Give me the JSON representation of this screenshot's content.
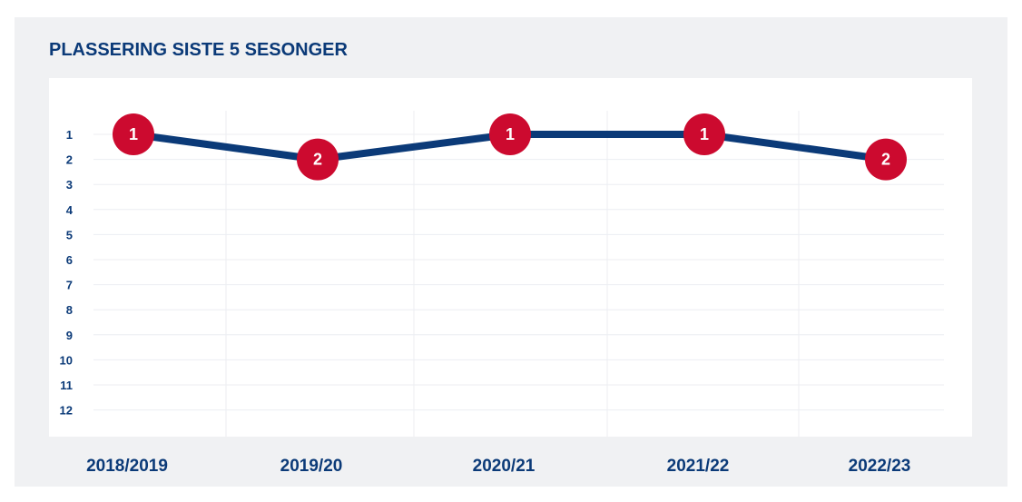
{
  "chart_data": {
    "type": "line",
    "title": "PLASSERING SISTE 5 SESONGER",
    "categories": [
      "2018/2019",
      "2019/20",
      "2020/21",
      "2021/22",
      "2022/23"
    ],
    "series": [
      {
        "values": [
          1,
          2,
          1,
          1,
          2
        ]
      }
    ],
    "y_ticks": [
      1,
      2,
      3,
      4,
      5,
      6,
      7,
      8,
      9,
      10,
      11,
      12
    ],
    "ylim": [
      1,
      12
    ],
    "y_inverted": true,
    "grid": true,
    "data_labels": [
      "1",
      "2",
      "1",
      "1",
      "2"
    ],
    "colors": {
      "line": "#0b3a78",
      "marker": "#cc0a2f",
      "text": "#0b3a78",
      "panel": "#f0f1f3"
    }
  }
}
